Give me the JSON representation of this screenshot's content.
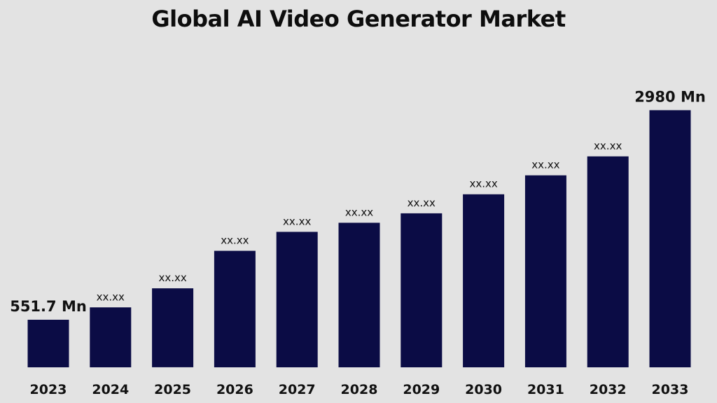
{
  "chart_data": {
    "type": "bar",
    "title": "Global AI Video Generator Market",
    "xlabel": "",
    "ylabel": "",
    "categories": [
      "2023",
      "2024",
      "2025",
      "2026",
      "2027",
      "2028",
      "2029",
      "2030",
      "2031",
      "2032",
      "2033"
    ],
    "values": [
      551.7,
      695,
      915,
      1350,
      1570,
      1675,
      1785,
      2005,
      2225,
      2445,
      2980
    ],
    "data_labels": [
      "551.7 Mn",
      "xx.xx",
      "xx.xx",
      "xx.xx",
      "xx.xx",
      "xx.xx",
      "xx.xx",
      "xx.xx",
      "xx.xx",
      "xx.xx",
      "2980 Mn"
    ],
    "ylim": [
      0,
      3000
    ],
    "grid": false,
    "legend": "none",
    "bar_color": "#0b0c45",
    "background_color": "#e3e3e3"
  }
}
